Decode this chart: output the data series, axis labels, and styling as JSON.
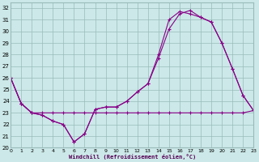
{
  "background_color": "#cce8e8",
  "grid_color": "#99bbbb",
  "line_color": "#880088",
  "xlabel": "Windchill (Refroidissement éolien,°C)",
  "xlim": [
    0,
    23
  ],
  "ylim": [
    20,
    32.5
  ],
  "xticks": [
    0,
    1,
    2,
    3,
    4,
    5,
    6,
    7,
    8,
    9,
    10,
    11,
    12,
    13,
    14,
    15,
    16,
    17,
    18,
    19,
    20,
    21,
    22,
    23
  ],
  "yticks": [
    20,
    21,
    22,
    23,
    24,
    25,
    26,
    27,
    28,
    29,
    30,
    31,
    32
  ],
  "line1_x": [
    0,
    1,
    2,
    3,
    4,
    5,
    6,
    7,
    8,
    9,
    10,
    11,
    12,
    13,
    14,
    15,
    16,
    17,
    18,
    19,
    20,
    21,
    22,
    23
  ],
  "line1_y": [
    26.0,
    23.8,
    23.0,
    22.8,
    22.3,
    22.0,
    20.5,
    21.2,
    23.3,
    23.5,
    23.5,
    24.0,
    24.8,
    25.5,
    27.7,
    30.2,
    31.5,
    31.8,
    31.2,
    30.8,
    29.0,
    26.8,
    24.5,
    23.2
  ],
  "line2_x": [
    0,
    1,
    2,
    3,
    4,
    5,
    6,
    7,
    8,
    9,
    10,
    11,
    12,
    13,
    14,
    15,
    16,
    17,
    18,
    19,
    20,
    21,
    22,
    23
  ],
  "line2_y": [
    26.0,
    23.8,
    23.0,
    22.8,
    22.3,
    22.0,
    20.5,
    21.2,
    23.3,
    23.5,
    23.5,
    24.0,
    24.8,
    25.5,
    28.0,
    31.0,
    31.7,
    31.5,
    31.2,
    30.8,
    29.0,
    26.8,
    24.5,
    23.2
  ],
  "line3_x": [
    0,
    1,
    2,
    3,
    4,
    5,
    6,
    7,
    8,
    9,
    10,
    11,
    12,
    13,
    14,
    15,
    16,
    17,
    18,
    19,
    20,
    21,
    22,
    23
  ],
  "line3_y": [
    26.0,
    23.8,
    23.0,
    23.0,
    23.0,
    23.0,
    23.0,
    23.0,
    23.0,
    23.0,
    23.0,
    23.0,
    23.0,
    23.0,
    23.0,
    23.0,
    23.0,
    23.0,
    23.0,
    23.0,
    23.0,
    23.0,
    23.0,
    23.2
  ]
}
